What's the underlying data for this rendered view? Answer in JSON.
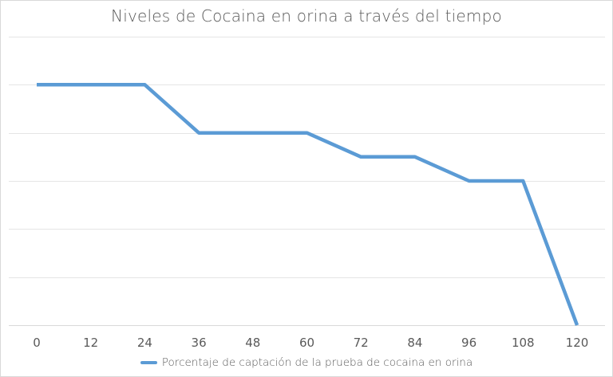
{
  "chart_data": {
    "type": "line",
    "title": "Niveles de Cocaina en orina a través del tiempo",
    "xlabel": "",
    "ylabel": "",
    "categories": [
      "0",
      "12",
      "24",
      "36",
      "48",
      "60",
      "72",
      "84",
      "96",
      "108",
      "120"
    ],
    "series": [
      {
        "name": "Porcentaje de captación de la prueba de cocaina en orina",
        "color": "#5b9bd5",
        "values": [
          100,
          100,
          100,
          80,
          80,
          80,
          70,
          70,
          60,
          60,
          0
        ]
      }
    ],
    "ylim": [
      0,
      120
    ],
    "y_gridlines": [
      0,
      20,
      40,
      60,
      80,
      100,
      120
    ],
    "y_tick_labels_visible": false,
    "grid": true,
    "legend": "bottom"
  }
}
